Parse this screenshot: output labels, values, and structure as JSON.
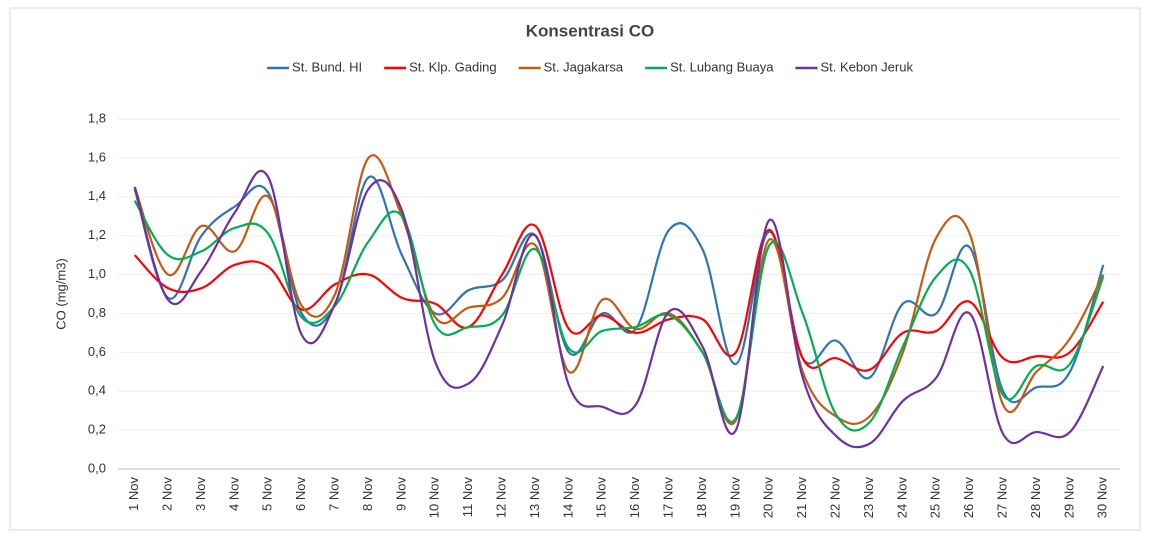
{
  "chart_data": {
    "type": "line",
    "title": "Konsentrasi CO",
    "y_label": "CO (mg/m3)",
    "categories": [
      "1 Nov",
      "2 Nov",
      "3 Nov",
      "4 Nov",
      "5 Nov",
      "6 Nov",
      "7 Nov",
      "8 Nov",
      "9 Nov",
      "10 Nov",
      "11 Nov",
      "12 Nov",
      "13 Nov",
      "14 Nov",
      "15 Nov",
      "16 Nov",
      "17 Nov",
      "18 Nov",
      "19 Nov",
      "20 Nov",
      "21 Nov",
      "22 Nov",
      "23 Nov",
      "24 Nov",
      "25 Nov",
      "26 Nov",
      "27 Nov",
      "28 Nov",
      "29 Nov",
      "30 Nov"
    ],
    "series": [
      {
        "name": "St. Bund. HI",
        "color": "#2e75b6",
        "values": [
          1.44,
          0.88,
          1.2,
          1.35,
          1.42,
          0.8,
          0.85,
          1.5,
          1.1,
          0.8,
          0.92,
          0.97,
          1.2,
          0.6,
          0.8,
          0.72,
          1.23,
          1.13,
          0.54,
          1.22,
          0.57,
          0.66,
          0.47,
          0.85,
          0.8,
          1.14,
          0.4,
          0.42,
          0.5,
          1.05
        ]
      },
      {
        "name": "St. Klp. Gading",
        "color": "#ff0000",
        "values": [
          1.1,
          0.93,
          0.93,
          1.05,
          1.04,
          0.82,
          0.95,
          1.0,
          0.88,
          0.85,
          0.73,
          1.0,
          1.25,
          0.72,
          0.79,
          0.7,
          0.77,
          0.77,
          0.6,
          1.23,
          0.57,
          0.57,
          0.51,
          0.7,
          0.71,
          0.86,
          0.57,
          0.58,
          0.6,
          0.86
        ]
      },
      {
        "name": "St. Jagakarsa",
        "color": "#c55a11",
        "values": [
          1.45,
          1.0,
          1.25,
          1.12,
          1.4,
          0.84,
          0.9,
          1.6,
          1.3,
          0.78,
          0.83,
          0.88,
          1.15,
          0.5,
          0.87,
          0.72,
          0.8,
          0.6,
          0.25,
          1.18,
          0.5,
          0.27,
          0.27,
          0.6,
          1.19,
          1.21,
          0.33,
          0.5,
          0.67,
          1.0
        ]
      },
      {
        "name": "St. Lubang Buaya",
        "color": "#00b050",
        "values": [
          1.38,
          1.1,
          1.12,
          1.24,
          1.21,
          0.78,
          0.84,
          1.17,
          1.3,
          0.74,
          0.73,
          0.79,
          1.13,
          0.62,
          0.71,
          0.73,
          0.79,
          0.6,
          0.26,
          1.15,
          0.8,
          0.28,
          0.24,
          0.63,
          0.99,
          1.02,
          0.38,
          0.53,
          0.54,
          0.99
        ]
      },
      {
        "name": "St. Kebon Jeruk",
        "color": "#7030a0",
        "values": [
          1.45,
          0.87,
          1.02,
          1.32,
          1.5,
          0.69,
          0.85,
          1.44,
          1.33,
          0.55,
          0.44,
          0.74,
          1.2,
          0.43,
          0.32,
          0.33,
          0.81,
          0.63,
          0.2,
          1.28,
          0.47,
          0.17,
          0.13,
          0.35,
          0.47,
          0.8,
          0.18,
          0.19,
          0.19,
          0.53
        ]
      }
    ],
    "ylim": [
      0,
      1.8
    ],
    "yticks": [
      {
        "value": 0,
        "label": "0,0"
      },
      {
        "value": 0.2,
        "label": "0,2"
      },
      {
        "value": 0.4,
        "label": "0,4"
      },
      {
        "value": 0.6,
        "label": "0,6"
      },
      {
        "value": 0.8,
        "label": "0,8"
      },
      {
        "value": 1.0,
        "label": "1,0"
      },
      {
        "value": 1.2,
        "label": "1,2"
      },
      {
        "value": 1.4,
        "label": "1,4"
      },
      {
        "value": 1.6,
        "label": "1,6"
      },
      {
        "value": 1.8,
        "label": "1,8"
      }
    ],
    "grid": true,
    "legend": "top"
  }
}
